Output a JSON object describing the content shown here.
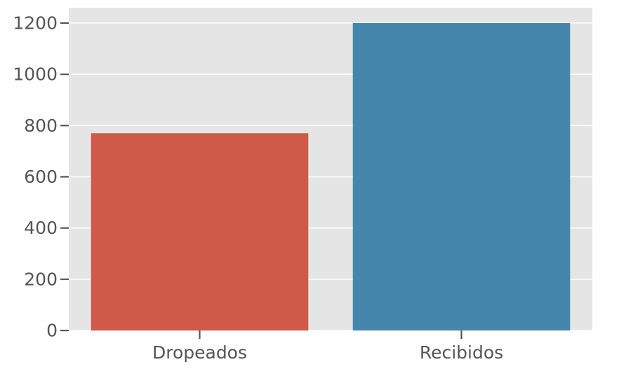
{
  "chart_data": {
    "type": "bar",
    "title": "",
    "xlabel": "",
    "ylabel": "",
    "categories": [
      "Dropeados",
      "Recibidos"
    ],
    "values": [
      770,
      1200
    ],
    "colors": [
      "#cf5a47",
      "#4587ac"
    ],
    "ylim": [
      0,
      1260
    ],
    "yticks": [
      0,
      200,
      400,
      600,
      800,
      1000,
      1200
    ],
    "grid": true,
    "legend": "none",
    "background": "#e5e5e5"
  }
}
